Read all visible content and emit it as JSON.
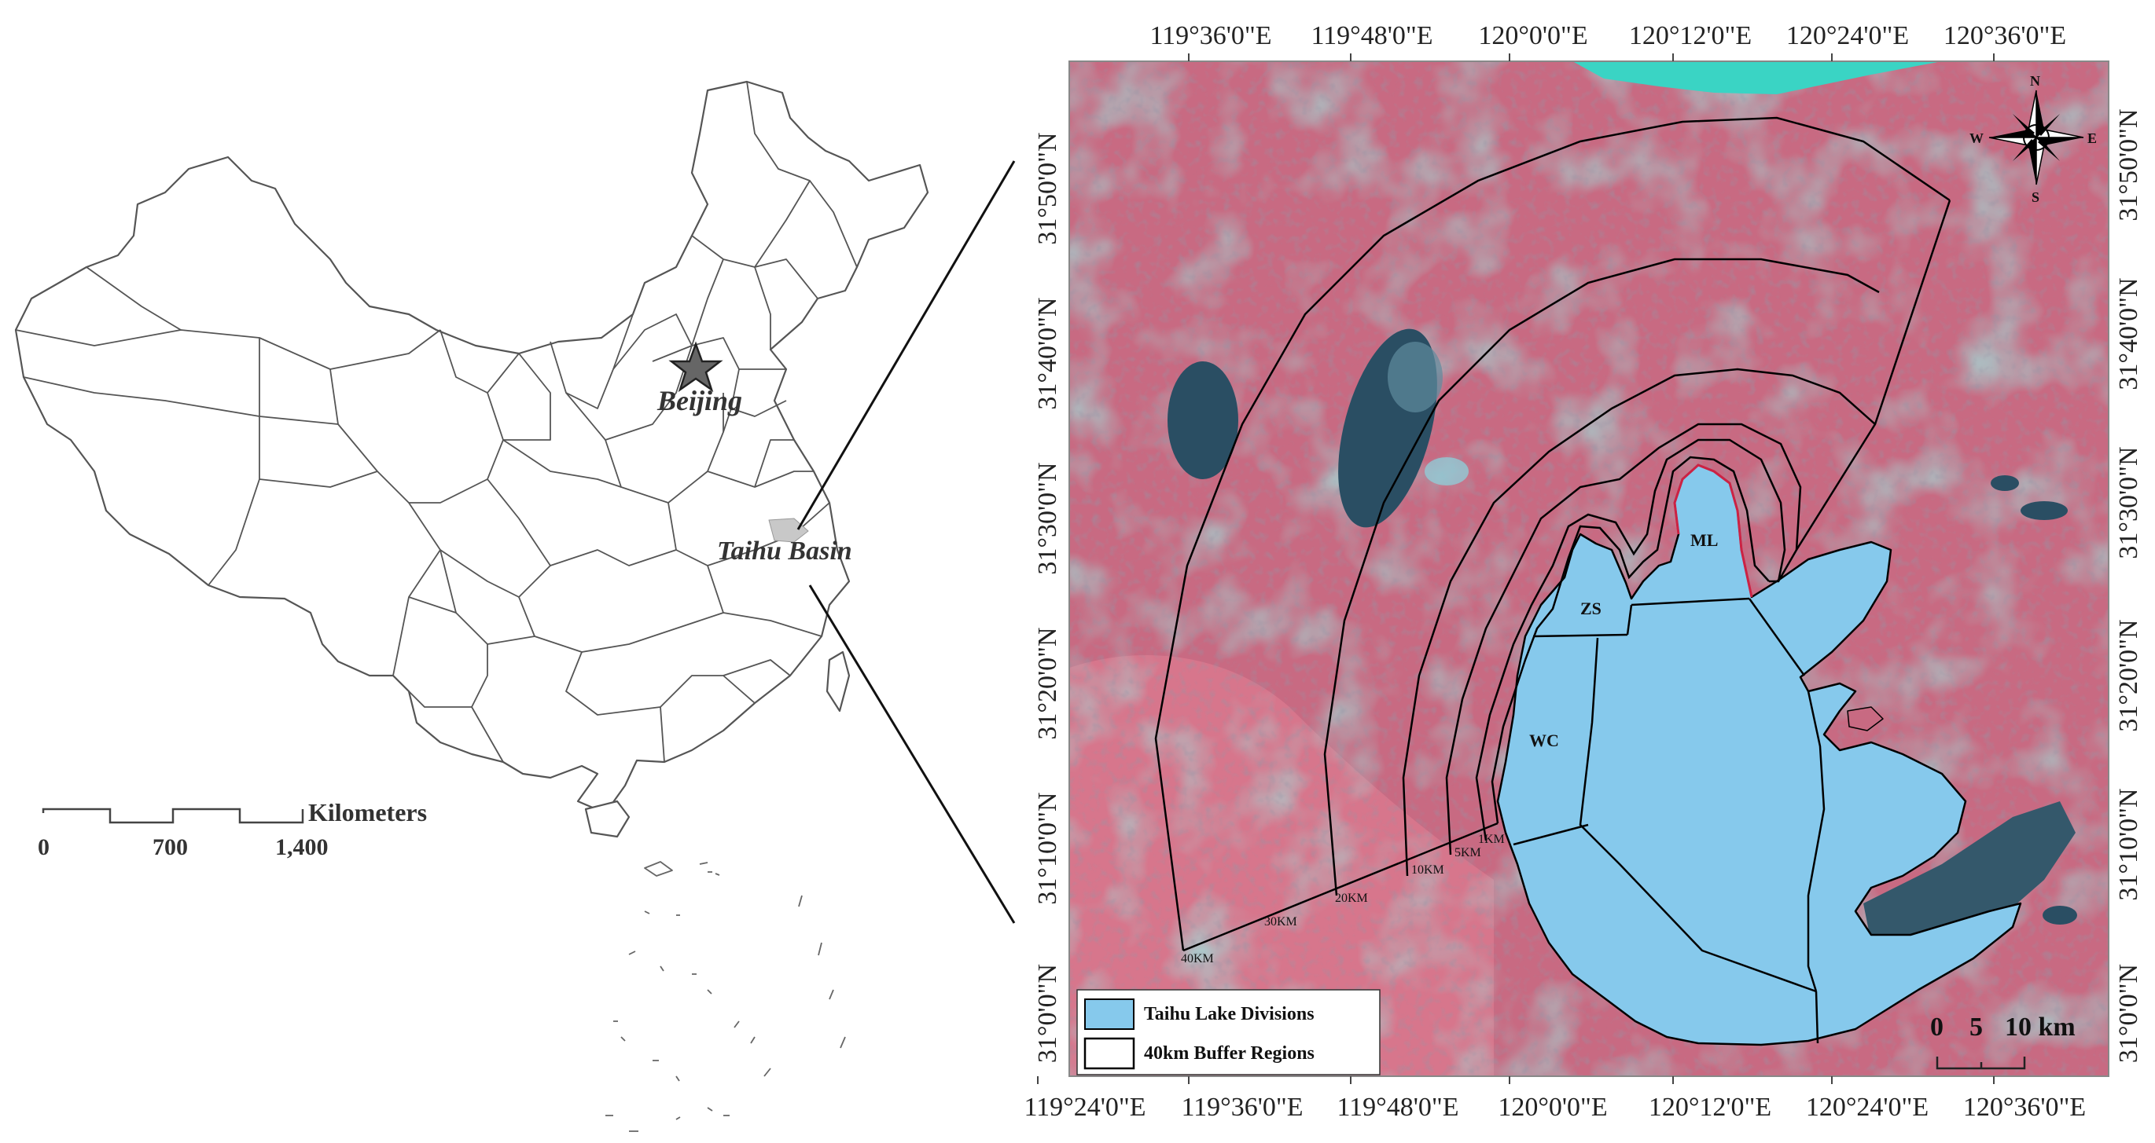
{
  "left_map": {
    "capital_label": "Beijing",
    "basin_label": "Taihu Basin",
    "scale": {
      "unit_label": "Kilometers",
      "ticks": [
        "0",
        "700",
        "1,400"
      ]
    },
    "colors": {
      "outline": "#555555",
      "basin_fill": "#c8c8c8"
    }
  },
  "right_map": {
    "top_lon_labels": [
      "119°36'0\"E",
      "119°48'0\"E",
      "120°0'0\"E",
      "120°12'0\"E",
      "120°24'0\"E",
      "120°36'0\"E"
    ],
    "bottom_lon_labels": [
      "119°24'0\"E",
      "119°36'0\"E",
      "119°48'0\"E",
      "120°0'0\"E",
      "120°12'0\"E",
      "120°24'0\"E",
      "120°36'0\"E"
    ],
    "left_lat_labels": [
      "31°50'0\"N",
      "31°40'0\"N",
      "31°30'0\"N",
      "31°20'0\"N",
      "31°10'0\"N",
      "31°0'0\"N"
    ],
    "right_lat_labels": [
      "31°50'0\"N",
      "31°40'0\"N",
      "31°30'0\"N",
      "31°20'0\"N",
      "31°10'0\"N",
      "31°0'0\"N"
    ],
    "divisions": [
      "ML",
      "ZS",
      "WC"
    ],
    "buffer_labels": [
      "1KM",
      "5KM",
      "10KM",
      "20KM",
      "30KM",
      "40KM"
    ],
    "compass": {
      "n": "N",
      "s": "S",
      "e": "E",
      "w": "W"
    },
    "scale": {
      "ticks": [
        "0",
        "5",
        "10 km"
      ]
    },
    "legend": {
      "items": [
        {
          "label": "Taihu Lake Divisions"
        },
        {
          "label": "40km Buffer Regions"
        }
      ]
    },
    "colors": {
      "lake": "#86c9ec",
      "land": "#c86a82",
      "urban": "#6fd0c8",
      "buffer": "#000000",
      "river": "#3ad4c4",
      "dark_water": "#2a4e63"
    }
  }
}
